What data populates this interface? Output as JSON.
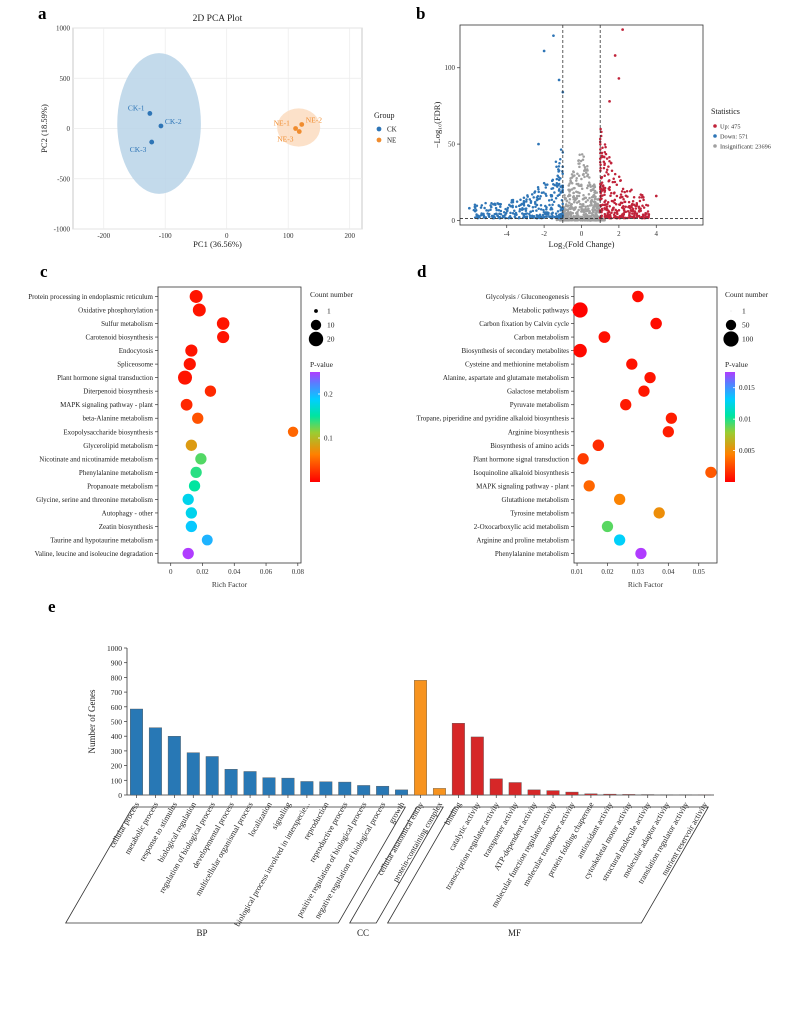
{
  "panels": {
    "a": {
      "letter": "a",
      "chart_data": {
        "type": "scatter",
        "title": "2D PCA Plot",
        "xlabel": "PC1 (36.56%)",
        "ylabel": "PC2 (18.59%)",
        "xlim": [
          -250,
          220
        ],
        "ylim": [
          -1000,
          1000
        ],
        "xticks": [
          -200,
          -100,
          0,
          100,
          200
        ],
        "yticks": [
          -1000,
          -500,
          0,
          500,
          1000
        ],
        "legend_title": "Group",
        "groups": [
          {
            "name": "CK",
            "color": "#2E75B6",
            "ellipse_color": "#B9D3E8",
            "ellipse": {
              "cx": -110,
              "cy": 50,
              "rx": 68,
              "ry": 700,
              "angle_deg": 0
            },
            "points": [
              {
                "label": "CK-1",
                "x": -125,
                "y": 150
              },
              {
                "label": "CK-2",
                "x": -107,
                "y": 25
              },
              {
                "label": "CK-3",
                "x": -122,
                "y": -135
              }
            ]
          },
          {
            "name": "NE",
            "color": "#F08C2E",
            "ellipse_color": "#FBDCC0",
            "ellipse": {
              "cx": 117,
              "cy": 10,
              "rx": 35,
              "ry": 190,
              "angle_deg": 0
            },
            "points": [
              {
                "label": "NE-1",
                "x": 112,
                "y": 0
              },
              {
                "label": "NE-2",
                "x": 122,
                "y": 40
              },
              {
                "label": "NE-3",
                "x": 118,
                "y": -30
              }
            ]
          }
        ]
      }
    },
    "b": {
      "letter": "b",
      "chart_data": {
        "type": "scatter",
        "title": "",
        "xlabel": "Log₂(Fold Change)",
        "ylabel": "−Log₁₀(FDR)",
        "xlim": [
          -6.5,
          6.5
        ],
        "ylim": [
          -3,
          128
        ],
        "xticks": [
          -4,
          -2,
          0,
          2,
          4
        ],
        "yticks": [
          0,
          50,
          100
        ],
        "fc_lines": [
          -1,
          1
        ],
        "fdr_line": 1.3,
        "legend_title": "Statistics",
        "categories": [
          {
            "label": "Up: 475",
            "color": "#C0233A",
            "count": 475
          },
          {
            "label": "Down: 571",
            "color": "#2E75B6",
            "count": 571
          },
          {
            "label": "Insignificant: 23696",
            "color": "#A0A0A0",
            "count": 23696
          }
        ],
        "highlight_points": [
          {
            "cls": "down",
            "x": -1.5,
            "y": 121
          },
          {
            "cls": "down",
            "x": -2.0,
            "y": 111
          },
          {
            "cls": "down",
            "x": -1.2,
            "y": 92
          },
          {
            "cls": "down",
            "x": -1.0,
            "y": 84
          },
          {
            "cls": "down",
            "x": -2.3,
            "y": 50
          },
          {
            "cls": "down",
            "x": -6.0,
            "y": 8
          },
          {
            "cls": "down",
            "x": -5.5,
            "y": 2
          },
          {
            "cls": "up",
            "x": 2.2,
            "y": 125
          },
          {
            "cls": "up",
            "x": 1.8,
            "y": 108
          },
          {
            "cls": "up",
            "x": 2.0,
            "y": 93
          },
          {
            "cls": "up",
            "x": 1.5,
            "y": 78
          },
          {
            "cls": "up",
            "x": 4.0,
            "y": 16
          },
          {
            "cls": "up",
            "x": 3.6,
            "y": 4
          }
        ]
      }
    },
    "c": {
      "letter": "c",
      "chart_data": {
        "type": "scatter",
        "xlabel": "Rich Factor",
        "xlim": [
          -0.008,
          0.082
        ],
        "xticks": [
          0,
          0.02,
          0.04,
          0.06,
          0.08
        ],
        "size_legend_title": "Count number",
        "size_legend": [
          1,
          10,
          20
        ],
        "color_legend_title": "P-value",
        "color_range": [
          0,
          0.25
        ],
        "color_ticks": [
          0.1,
          0.2
        ],
        "terms": [
          {
            "name": "Protein processing in endoplasmic reticulum",
            "rich": 0.016,
            "count": 16,
            "p": 0.01
          },
          {
            "name": "Oxidative phosphorylation",
            "rich": 0.018,
            "count": 16,
            "p": 0.01
          },
          {
            "name": "Sulfur metabolism",
            "rich": 0.033,
            "count": 15,
            "p": 0.01
          },
          {
            "name": "Carotenoid biosynthesis",
            "rich": 0.033,
            "count": 14,
            "p": 0.01
          },
          {
            "name": "Endocytosis",
            "rich": 0.013,
            "count": 14,
            "p": 0.01
          },
          {
            "name": "Spliceosome",
            "rich": 0.012,
            "count": 14,
            "p": 0.01
          },
          {
            "name": "Plant hormone signal transduction",
            "rich": 0.009,
            "count": 19,
            "p": 0.01
          },
          {
            "name": "Diterpenoid biosynthesis",
            "rich": 0.025,
            "count": 12,
            "p": 0.02
          },
          {
            "name": "MAPK signaling pathway - plant",
            "rich": 0.01,
            "count": 13,
            "p": 0.02
          },
          {
            "name": "beta-Alanine metabolism",
            "rich": 0.017,
            "count": 12,
            "p": 0.04
          },
          {
            "name": "Exopolysaccharide biosynthesis",
            "rich": 0.077,
            "count": 10,
            "p": 0.05
          },
          {
            "name": "Glycerolipid metabolism",
            "rich": 0.013,
            "count": 12,
            "p": 0.08
          },
          {
            "name": "Nicotinate and nicotinamide metabolism",
            "rich": 0.019,
            "count": 12,
            "p": 0.13
          },
          {
            "name": "Phenylalanine metabolism",
            "rich": 0.016,
            "count": 12,
            "p": 0.14
          },
          {
            "name": "Propanoate metabolism",
            "rich": 0.015,
            "count": 12,
            "p": 0.15
          },
          {
            "name": "Glycine, serine and threonine metabolism",
            "rich": 0.011,
            "count": 12,
            "p": 0.18
          },
          {
            "name": "Autophagy - other",
            "rich": 0.013,
            "count": 12,
            "p": 0.18
          },
          {
            "name": "Zeatin biosynthesis",
            "rich": 0.013,
            "count": 12,
            "p": 0.19
          },
          {
            "name": "Taurine and hypotaurine metabolism",
            "rich": 0.023,
            "count": 11,
            "p": 0.2
          },
          {
            "name": "Valine, leucine and isoleucine degradation",
            "rich": 0.011,
            "count": 12,
            "p": 0.25
          }
        ]
      }
    },
    "d": {
      "letter": "d",
      "chart_data": {
        "type": "scatter",
        "xlabel": "Rich Factor",
        "xlim": [
          0.009,
          0.056
        ],
        "xticks": [
          0.01,
          0.02,
          0.03,
          0.04,
          0.05
        ],
        "size_legend_title": "Count number",
        "size_legend": [
          1,
          50,
          100
        ],
        "color_legend_title": "P-value",
        "color_range": [
          0,
          0.0175
        ],
        "color_ticks": [
          0.005,
          0.01,
          0.015
        ],
        "terms": [
          {
            "name": "Glycolysis / Gluconeogenesis",
            "rich": 0.03,
            "count": 60,
            "p": 0.0004
          },
          {
            "name": "Metabolic pathways",
            "rich": 0.011,
            "count": 100,
            "p": 0.0001
          },
          {
            "name": "Carbon fixation by Calvin cycle",
            "rich": 0.036,
            "count": 60,
            "p": 0.0004
          },
          {
            "name": "Carbon metabolism",
            "rich": 0.019,
            "count": 62,
            "p": 0.0005
          },
          {
            "name": "Biosynthesis of secondary metabolites",
            "rich": 0.011,
            "count": 80,
            "p": 0.0003
          },
          {
            "name": "Cysteine and methionine metabolism",
            "rich": 0.028,
            "count": 58,
            "p": 0.0006
          },
          {
            "name": "Alanine, aspartate and glutamate metabolism",
            "rich": 0.034,
            "count": 58,
            "p": 0.0007
          },
          {
            "name": "Galactose metabolism",
            "rich": 0.032,
            "count": 58,
            "p": 0.0008
          },
          {
            "name": "Pyruvate metabolism",
            "rich": 0.026,
            "count": 58,
            "p": 0.0009
          },
          {
            "name": "Tropane, piperidine and pyridine alkaloid biosynthesis",
            "rich": 0.041,
            "count": 58,
            "p": 0.001
          },
          {
            "name": "Arginine biosynthesis",
            "rich": 0.04,
            "count": 58,
            "p": 0.001
          },
          {
            "name": "Biosynthesis of amino acids",
            "rich": 0.017,
            "count": 60,
            "p": 0.0015
          },
          {
            "name": "Plant hormone signal transduction",
            "rich": 0.012,
            "count": 58,
            "p": 0.002
          },
          {
            "name": "Isoquinoline alkaloid biosynthesis",
            "rich": 0.054,
            "count": 58,
            "p": 0.003
          },
          {
            "name": "MAPK signaling pathway - plant",
            "rich": 0.014,
            "count": 58,
            "p": 0.0035
          },
          {
            "name": "Glutathione metabolism",
            "rich": 0.024,
            "count": 58,
            "p": 0.0045
          },
          {
            "name": "Tyrosine metabolism",
            "rich": 0.037,
            "count": 58,
            "p": 0.005
          },
          {
            "name": "2-Oxocarboxylic acid metabolism",
            "rich": 0.02,
            "count": 58,
            "p": 0.009
          },
          {
            "name": "Arginine and proline metabolism",
            "rich": 0.024,
            "count": 58,
            "p": 0.013
          },
          {
            "name": "Phenylalanine metabolism",
            "rich": 0.031,
            "count": 58,
            "p": 0.0175
          }
        ]
      }
    },
    "e": {
      "letter": "e",
      "chart_data": {
        "type": "bar",
        "ylabel": "Number of Genes",
        "ylim": [
          0,
          1000
        ],
        "yticks": [
          0,
          100,
          200,
          300,
          400,
          500,
          600,
          700,
          800,
          900,
          1000
        ],
        "group_colors": {
          "BP": "#2878B5",
          "CC": "#F7931E",
          "MF": "#D62728"
        },
        "groups": [
          "BP",
          "CC",
          "MF"
        ],
        "bars": [
          {
            "label": "cellular process",
            "value": 585,
            "group": "BP"
          },
          {
            "label": "metabolic process",
            "value": 458,
            "group": "BP"
          },
          {
            "label": "response to stimulus",
            "value": 400,
            "group": "BP"
          },
          {
            "label": "biological regulation",
            "value": 288,
            "group": "BP"
          },
          {
            "label": "regulation of biological process",
            "value": 262,
            "group": "BP"
          },
          {
            "label": "developmental process",
            "value": 175,
            "group": "BP"
          },
          {
            "label": "multicellular organismal process",
            "value": 160,
            "group": "BP"
          },
          {
            "label": "localization",
            "value": 118,
            "group": "BP"
          },
          {
            "label": "signaling",
            "value": 115,
            "group": "BP"
          },
          {
            "label": "biological process involved in interspecie...",
            "value": 92,
            "group": "BP"
          },
          {
            "label": "reproduction",
            "value": 90,
            "group": "BP"
          },
          {
            "label": "reproductive process",
            "value": 88,
            "group": "BP"
          },
          {
            "label": "positive regulation of biological process",
            "value": 65,
            "group": "BP"
          },
          {
            "label": "negative regulation of biological process",
            "value": 60,
            "group": "BP"
          },
          {
            "label": "growth",
            "value": 35,
            "group": "BP"
          },
          {
            "label": "cellular anatomical entity",
            "value": 780,
            "group": "CC"
          },
          {
            "label": "protein-containing complex",
            "value": 45,
            "group": "CC"
          },
          {
            "label": "binding",
            "value": 488,
            "group": "MF"
          },
          {
            "label": "catalytic activity",
            "value": 395,
            "group": "MF"
          },
          {
            "label": "transcription regulator activity",
            "value": 110,
            "group": "MF"
          },
          {
            "label": "transporter activity",
            "value": 85,
            "group": "MF"
          },
          {
            "label": "ATP-dependent activity",
            "value": 35,
            "group": "MF"
          },
          {
            "label": "molecular function regulator activity",
            "value": 30,
            "group": "MF"
          },
          {
            "label": "molecular transducer activity",
            "value": 20,
            "group": "MF"
          },
          {
            "label": "protein folding chaperone",
            "value": 8,
            "group": "MF"
          },
          {
            "label": "antioxidant activity",
            "value": 6,
            "group": "MF"
          },
          {
            "label": "cytoskeletal motor activity",
            "value": 4,
            "group": "MF"
          },
          {
            "label": "structural molecule activity",
            "value": 3,
            "group": "MF"
          },
          {
            "label": "molecular adaptor activity",
            "value": 2,
            "group": "MF"
          },
          {
            "label": "translation regulator activity",
            "value": 2,
            "group": "MF"
          },
          {
            "label": "nutrient reservoir activity",
            "value": 1,
            "group": "MF"
          }
        ]
      }
    }
  }
}
